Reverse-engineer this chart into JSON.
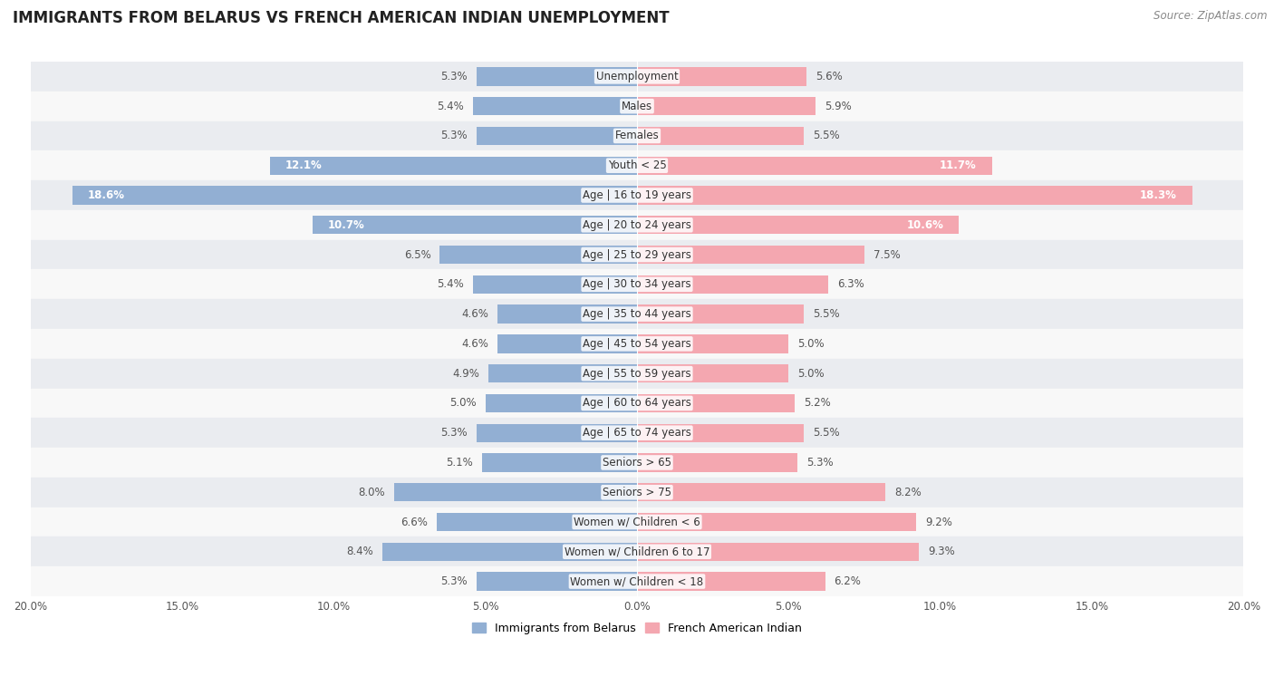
{
  "title": "IMMIGRANTS FROM BELARUS VS FRENCH AMERICAN INDIAN UNEMPLOYMENT",
  "source": "Source: ZipAtlas.com",
  "categories": [
    "Unemployment",
    "Males",
    "Females",
    "Youth < 25",
    "Age | 16 to 19 years",
    "Age | 20 to 24 years",
    "Age | 25 to 29 years",
    "Age | 30 to 34 years",
    "Age | 35 to 44 years",
    "Age | 45 to 54 years",
    "Age | 55 to 59 years",
    "Age | 60 to 64 years",
    "Age | 65 to 74 years",
    "Seniors > 65",
    "Seniors > 75",
    "Women w/ Children < 6",
    "Women w/ Children 6 to 17",
    "Women w/ Children < 18"
  ],
  "left_values": [
    5.3,
    5.4,
    5.3,
    12.1,
    18.6,
    10.7,
    6.5,
    5.4,
    4.6,
    4.6,
    4.9,
    5.0,
    5.3,
    5.1,
    8.0,
    6.6,
    8.4,
    5.3
  ],
  "right_values": [
    5.6,
    5.9,
    5.5,
    11.7,
    18.3,
    10.6,
    7.5,
    6.3,
    5.5,
    5.0,
    5.0,
    5.2,
    5.5,
    5.3,
    8.2,
    9.2,
    9.3,
    6.2
  ],
  "left_color": "#92afd3",
  "right_color": "#f4a7b0",
  "axis_limit": 20.0,
  "bar_height": 0.62,
  "bg_color_odd": "#eaecf0",
  "bg_color_even": "#f8f8f8",
  "legend_label_left": "Immigrants from Belarus",
  "legend_label_right": "French American Indian",
  "title_fontsize": 12,
  "label_fontsize": 8.5,
  "value_fontsize": 8.5,
  "source_fontsize": 8.5,
  "white_threshold": 10.0
}
